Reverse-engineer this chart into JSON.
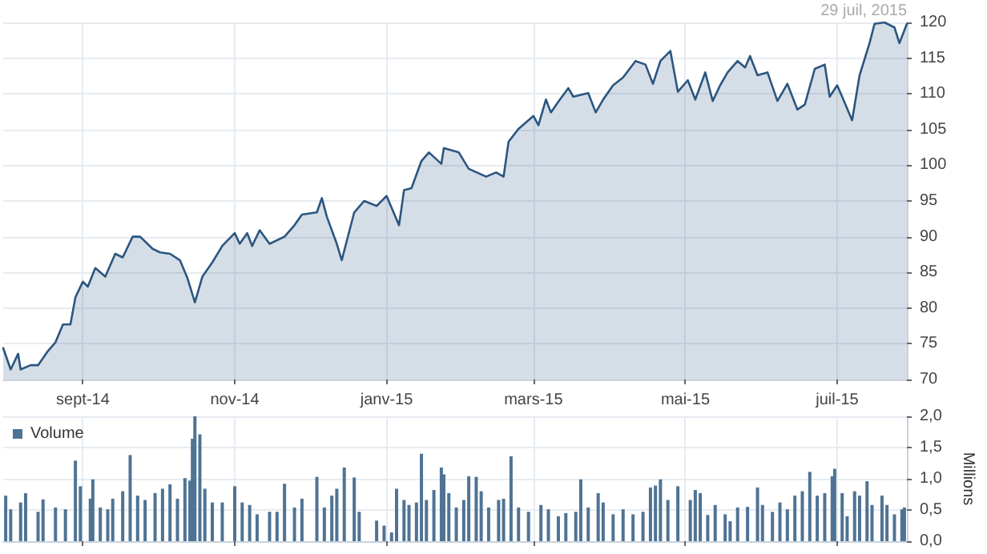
{
  "chart_data": [
    {
      "type": "area",
      "annotations": [
        "29 juil, 2015"
      ],
      "marker": "none",
      "line_style": "solid",
      "grid": true,
      "legend": false,
      "xlim": [
        "2014-07-31",
        "2015-07-29"
      ],
      "xticks": [
        {
          "value": "2014-09-01",
          "label": "sept-14"
        },
        {
          "value": "2014-11-01",
          "label": "nov-14"
        },
        {
          "value": "2015-01-01",
          "label": "janv-15"
        },
        {
          "value": "2015-03-01",
          "label": "mars-15"
        },
        {
          "value": "2015-05-01",
          "label": "mai-15"
        },
        {
          "value": "2015-07-01",
          "label": "juil-15"
        }
      ],
      "ylim": [
        70,
        120
      ],
      "yticks": [
        70,
        75,
        80,
        85,
        90,
        95,
        100,
        105,
        110,
        115,
        120
      ],
      "x": [
        "2014-07-31",
        "2014-08-03",
        "2014-08-06",
        "2014-08-07",
        "2014-08-11",
        "2014-08-14",
        "2014-08-18",
        "2014-08-21",
        "2014-08-24",
        "2014-08-27",
        "2014-08-29",
        "2014-09-01",
        "2014-09-03",
        "2014-09-06",
        "2014-09-10",
        "2014-09-14",
        "2014-09-17",
        "2014-09-21",
        "2014-09-24",
        "2014-09-29",
        "2014-10-02",
        "2014-10-06",
        "2014-10-10",
        "2014-10-13",
        "2014-10-16",
        "2014-10-19",
        "2014-10-23",
        "2014-10-27",
        "2014-11-01",
        "2014-11-03",
        "2014-11-06",
        "2014-11-08",
        "2014-11-11",
        "2014-11-15",
        "2014-11-21",
        "2014-11-25",
        "2014-11-28",
        "2014-12-04",
        "2014-12-06",
        "2014-12-08",
        "2014-12-12",
        "2014-12-14",
        "2014-12-16",
        "2014-12-19",
        "2014-12-23",
        "2014-12-28",
        "2015-01-01",
        "2015-01-06",
        "2015-01-08",
        "2015-01-11",
        "2015-01-15",
        "2015-01-18",
        "2015-01-23",
        "2015-01-24",
        "2015-01-30",
        "2015-02-03",
        "2015-02-10",
        "2015-02-14",
        "2015-02-17",
        "2015-02-19",
        "2015-02-23",
        "2015-03-01",
        "2015-03-03",
        "2015-03-06",
        "2015-03-08",
        "2015-03-11",
        "2015-03-15",
        "2015-03-17",
        "2015-03-23",
        "2015-03-26",
        "2015-03-29",
        "2015-04-02",
        "2015-04-06",
        "2015-04-11",
        "2015-04-15",
        "2015-04-18",
        "2015-04-21",
        "2015-04-25",
        "2015-04-28",
        "2015-05-02",
        "2015-05-05",
        "2015-05-09",
        "2015-05-12",
        "2015-05-15",
        "2015-05-18",
        "2015-05-22",
        "2015-05-25",
        "2015-05-27",
        "2015-05-30",
        "2015-06-03",
        "2015-06-07",
        "2015-06-11",
        "2015-06-15",
        "2015-06-18",
        "2015-06-22",
        "2015-06-26",
        "2015-06-28",
        "2015-07-01",
        "2015-07-03",
        "2015-07-07",
        "2015-07-10",
        "2015-07-14",
        "2015-07-16",
        "2015-07-20",
        "2015-07-24",
        "2015-07-26",
        "2015-07-29"
      ],
      "series": [
        {
          "color": "#2b5680",
          "values": [
            74.4,
            71.4,
            73.6,
            71.4,
            72,
            72,
            74,
            75.2,
            77.7,
            77.7,
            81.5,
            83.7,
            83,
            85.6,
            84.4,
            87.6,
            87.1,
            90,
            90,
            88.3,
            87.8,
            87.6,
            86.7,
            84.2,
            80.8,
            84.4,
            86.4,
            88.7,
            90.5,
            89,
            90.5,
            88.7,
            90.9,
            89,
            90,
            91.6,
            93.1,
            93.4,
            95.4,
            92.8,
            89,
            86.7,
            89.4,
            93.4,
            95,
            94.3,
            95.7,
            91.6,
            96.5,
            96.8,
            100.6,
            101.8,
            100.2,
            102.4,
            101.8,
            99.5,
            98.4,
            99,
            98.4,
            103.3,
            105.1,
            106.9,
            105.6,
            109.2,
            107.4,
            108.9,
            110.8,
            109.6,
            110.1,
            107.4,
            109.2,
            111.2,
            112.3,
            114.6,
            114.1,
            111.4,
            114.6,
            116,
            110.3,
            111.9,
            109.2,
            113,
            109,
            111.2,
            113,
            114.6,
            113.7,
            115.3,
            112.6,
            113,
            109,
            111.4,
            107.8,
            108.5,
            113.5,
            114.1,
            109.6,
            111.2,
            109.6,
            106.3,
            112.6,
            117.1,
            119.8,
            120,
            119.3,
            117.1,
            119.8
          ]
        }
      ]
    },
    {
      "type": "bar",
      "ylabel": "Millions",
      "grid": true,
      "legend": "top left",
      "tick_labels": "y",
      "xlim": [
        "2014-07-31",
        "2015-07-29"
      ],
      "xticks": [
        {
          "value": "2014-09-01",
          "label": null
        },
        {
          "value": "2014-11-01",
          "label": null
        },
        {
          "value": "2015-01-01",
          "label": null
        },
        {
          "value": "2015-03-01",
          "label": null
        },
        {
          "value": "2015-05-01",
          "label": null
        },
        {
          "value": "2015-07-01",
          "label": null
        }
      ],
      "ylim": [
        0,
        2
      ],
      "yticks": [
        {
          "value": 0,
          "label": "0,0"
        },
        {
          "value": 0.5,
          "label": "0,5"
        },
        {
          "value": 1,
          "label": "1,0"
        },
        {
          "value": 1.5,
          "label": "1,5"
        },
        {
          "value": 2,
          "label": "2,0"
        }
      ],
      "x": [
        "2014-08-01",
        "2014-08-03",
        "2014-08-07",
        "2014-08-09",
        "2014-08-14",
        "2014-08-16",
        "2014-08-21",
        "2014-08-25",
        "2014-08-29",
        "2014-08-31",
        "2014-09-04",
        "2014-09-05",
        "2014-09-08",
        "2014-09-11",
        "2014-09-13",
        "2014-09-17",
        "2014-09-20",
        "2014-09-23",
        "2014-09-26",
        "2014-09-30",
        "2014-10-03",
        "2014-10-06",
        "2014-10-09",
        "2014-10-12",
        "2014-10-14",
        "2014-10-15",
        "2014-10-16",
        "2014-10-18",
        "2014-10-20",
        "2014-10-23",
        "2014-10-27",
        "2014-11-01",
        "2014-11-04",
        "2014-11-07",
        "2014-11-10",
        "2014-11-15",
        "2014-11-18",
        "2014-11-21",
        "2014-11-25",
        "2014-11-28",
        "2014-12-04",
        "2014-12-07",
        "2014-12-10",
        "2014-12-12",
        "2014-12-15",
        "2014-12-19",
        "2014-12-21",
        "2014-12-28",
        "2014-12-31",
        "2015-01-03",
        "2015-01-05",
        "2015-01-08",
        "2015-01-10",
        "2015-01-13",
        "2015-01-15",
        "2015-01-17",
        "2015-01-20",
        "2015-01-23",
        "2015-01-24",
        "2015-01-26",
        "2015-01-29",
        "2015-02-01",
        "2015-02-03",
        "2015-02-06",
        "2015-02-08",
        "2015-02-11",
        "2015-02-15",
        "2015-02-17",
        "2015-02-20",
        "2015-02-23",
        "2015-02-27",
        "2015-03-04",
        "2015-03-07",
        "2015-03-11",
        "2015-03-14",
        "2015-03-18",
        "2015-03-20",
        "2015-03-23",
        "2015-03-27",
        "2015-03-29",
        "2015-04-02",
        "2015-04-06",
        "2015-04-10",
        "2015-04-14",
        "2015-04-17",
        "2015-04-19",
        "2015-04-21",
        "2015-04-24",
        "2015-04-28",
        "2015-05-03",
        "2015-05-05",
        "2015-05-07",
        "2015-05-10",
        "2015-05-13",
        "2015-05-17",
        "2015-05-19",
        "2015-05-22",
        "2015-05-26",
        "2015-05-30",
        "2015-06-01",
        "2015-06-05",
        "2015-06-08",
        "2015-06-11",
        "2015-06-14",
        "2015-06-17",
        "2015-06-20",
        "2015-06-23",
        "2015-06-26",
        "2015-06-29",
        "2015-06-30",
        "2015-07-03",
        "2015-07-05",
        "2015-07-08",
        "2015-07-10",
        "2015-07-13",
        "2015-07-15",
        "2015-07-19",
        "2015-07-21",
        "2015-07-24",
        "2015-07-27",
        "2015-07-28"
      ],
      "series": [
        {
          "name": "Volume",
          "color": "#4f7394",
          "values": [
            0.73,
            0.51,
            0.62,
            0.77,
            0.47,
            0.67,
            0.54,
            0.51,
            1.29,
            0.88,
            0.68,
            0.99,
            0.54,
            0.51,
            0.68,
            0.8,
            1.38,
            0.73,
            0.66,
            0.77,
            0.84,
            0.91,
            0.68,
            1.01,
            0.97,
            1.64,
            2.0,
            1.71,
            0.84,
            0.62,
            0.62,
            0.88,
            0.62,
            0.58,
            0.43,
            0.47,
            0.47,
            0.92,
            0.54,
            0.68,
            1.03,
            0.54,
            0.73,
            0.84,
            1.18,
            1.02,
            0.47,
            0.33,
            0.25,
            0.14,
            0.84,
            0.66,
            0.58,
            0.62,
            1.4,
            0.66,
            0.82,
            1.18,
            1.07,
            0.77,
            0.54,
            0.66,
            1.04,
            1.03,
            0.8,
            0.54,
            0.66,
            0.68,
            1.36,
            0.54,
            0.47,
            0.58,
            0.51,
            0.4,
            0.45,
            0.47,
            0.99,
            0.54,
            0.77,
            0.62,
            0.43,
            0.51,
            0.43,
            0.47,
            0.86,
            0.89,
            0.99,
            0.66,
            0.88,
            0.66,
            0.82,
            0.77,
            0.42,
            0.58,
            0.43,
            0.32,
            0.54,
            0.55,
            0.86,
            0.58,
            0.47,
            0.62,
            0.51,
            0.73,
            0.8,
            1.11,
            0.73,
            0.77,
            1.04,
            1.16,
            0.77,
            0.4,
            0.8,
            0.73,
            0.96,
            0.58,
            0.73,
            0.58,
            0.43,
            0.51,
            0.54
          ]
        }
      ]
    }
  ]
}
